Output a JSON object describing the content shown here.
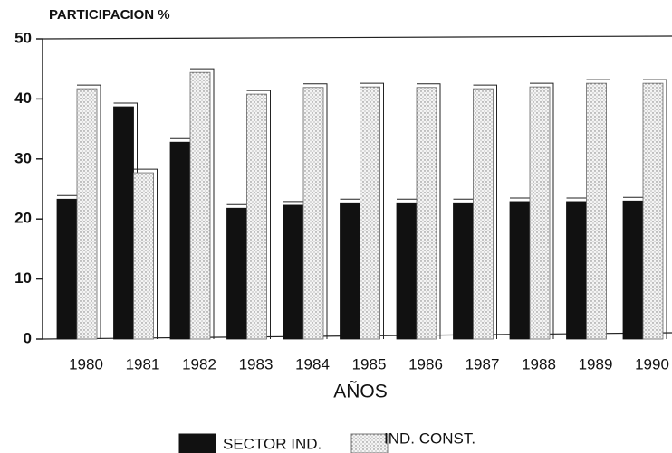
{
  "chart_data": {
    "type": "bar",
    "title": "PARTICIPACION %",
    "x_label": "AÑOS",
    "categories": [
      "1980",
      "1981",
      "1982",
      "1983",
      "1984",
      "1985",
      "1986",
      "1987",
      "1988",
      "1989",
      "1990"
    ],
    "series": [
      {
        "name": "SECTOR IND.",
        "color": "#111111",
        "values": [
          23.3,
          38.7,
          32.8,
          21.8,
          22.3,
          22.7,
          22.7,
          22.7,
          22.9,
          22.9,
          23.0
        ]
      },
      {
        "name": "IND. CONST.",
        "color": "#d9d9d9",
        "values": [
          41.7,
          27.7,
          44.4,
          40.8,
          41.9,
          42.0,
          41.9,
          41.7,
          42.0,
          42.6,
          42.6
        ]
      }
    ],
    "ylim": [
      0,
      50
    ],
    "yticks": [
      0,
      10,
      20,
      30,
      40,
      50
    ],
    "legend": "bottom"
  }
}
